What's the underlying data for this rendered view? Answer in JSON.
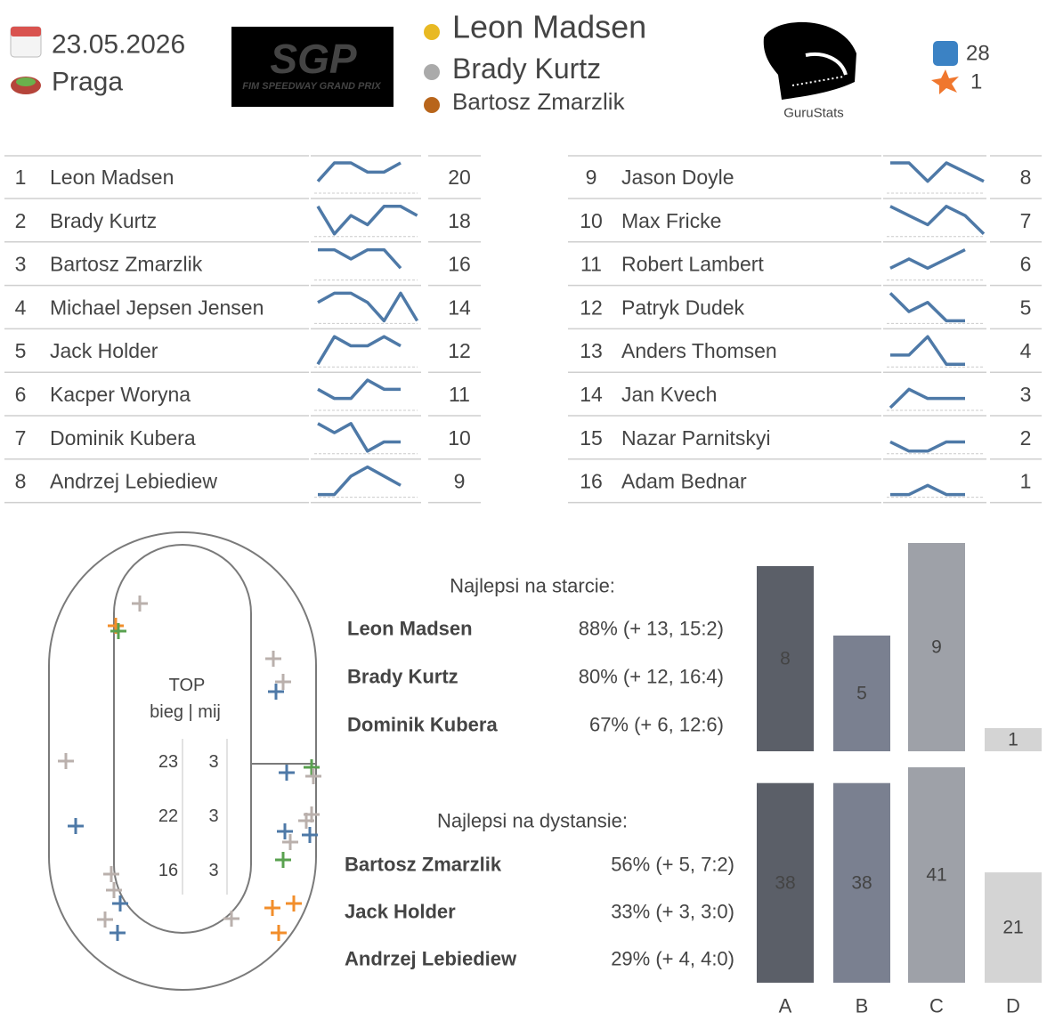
{
  "header": {
    "date": "23.05.2026",
    "place": "Praga",
    "podium": [
      "Leon Madsen",
      "Brady Kurtz",
      "Bartosz Zmarzlik"
    ],
    "logo": {
      "mark": "SGP",
      "caption": "FIM SPEEDWAY GRAND PRIX"
    },
    "brand": "GuruStats",
    "overtakes": 28,
    "crashes": 1
  },
  "standings": {
    "ylim": [
      0,
      3
    ],
    "rows": [
      {
        "rank": 1,
        "name": "Leon Madsen",
        "heats": [
          1,
          3,
          3,
          2,
          2,
          3
        ],
        "points": 20
      },
      {
        "rank": 2,
        "name": "Brady Kurtz",
        "heats": [
          3,
          0,
          2,
          1,
          3,
          3,
          2
        ],
        "points": 18
      },
      {
        "rank": 3,
        "name": "Bartosz Zmarzlik",
        "heats": [
          3,
          3,
          2,
          3,
          3,
          1
        ],
        "points": 16
      },
      {
        "rank": 4,
        "name": "Michael Jepsen Jensen",
        "heats": [
          2,
          3,
          3,
          2,
          0,
          3,
          0
        ],
        "points": 14
      },
      {
        "rank": 5,
        "name": "Jack Holder",
        "heats": [
          0,
          3,
          2,
          2,
          3,
          2
        ],
        "points": 12
      },
      {
        "rank": 6,
        "name": "Kacper Woryna",
        "heats": [
          2,
          1,
          1,
          3,
          2,
          2
        ],
        "points": 11
      },
      {
        "rank": 7,
        "name": "Dominik Kubera",
        "heats": [
          3,
          2,
          3,
          0,
          1,
          1
        ],
        "points": 10
      },
      {
        "rank": 8,
        "name": "Andrzej Lebiediew",
        "heats": [
          0,
          0,
          2,
          3,
          2,
          1
        ],
        "points": 9
      },
      {
        "rank": 9,
        "name": "Jason Doyle",
        "heats": [
          3,
          3,
          1,
          3,
          2,
          1
        ],
        "points": 8
      },
      {
        "rank": 10,
        "name": "Max Fricke",
        "heats": [
          3,
          2,
          1,
          3,
          2,
          0
        ],
        "points": 7
      },
      {
        "rank": 11,
        "name": "Robert Lambert",
        "heats": [
          1,
          2,
          1,
          2,
          3
        ],
        "points": 6
      },
      {
        "rank": 12,
        "name": "Patryk Dudek",
        "heats": [
          3,
          1,
          2,
          0,
          0
        ],
        "points": 5
      },
      {
        "rank": 13,
        "name": "Anders Thomsen",
        "heats": [
          1,
          1,
          3,
          0,
          0
        ],
        "points": 4
      },
      {
        "rank": 14,
        "name": "Jan Kvech",
        "heats": [
          0,
          2,
          1,
          1,
          1
        ],
        "points": 3
      },
      {
        "rank": 15,
        "name": "Nazar Parnitskyi",
        "heats": [
          1,
          0,
          0,
          1,
          1
        ],
        "points": 2
      },
      {
        "rank": 16,
        "name": "Adam Bednar",
        "heats": [
          0,
          0,
          1,
          0,
          0
        ],
        "points": 1
      }
    ]
  },
  "track": {
    "title": "TOP",
    "subtitle": "bieg | mij",
    "rows": [
      {
        "heat": 23,
        "overtakes": 3
      },
      {
        "heat": 22,
        "overtakes": 3
      },
      {
        "heat": 16,
        "overtakes": 3
      }
    ]
  },
  "best_start": {
    "title": "Najlepsi na starcie:",
    "rows": [
      {
        "name": "Leon Madsen",
        "stat": "88% (+ 13, 15:2)"
      },
      {
        "name": "Brady Kurtz",
        "stat": "80% (+ 12, 16:4)"
      },
      {
        "name": "Dominik Kubera",
        "stat": "67% (+ 6, 12:6)"
      }
    ]
  },
  "best_distance": {
    "title": "Najlepsi na dystansie:",
    "rows": [
      {
        "name": "Bartosz Zmarzlik",
        "stat": "56% (+ 5, 7:2)",
        "color": "#4e79a7"
      },
      {
        "name": "Jack Holder",
        "stat": "33% (+ 3, 3:0)",
        "color": "#59a14f"
      },
      {
        "name": "Andrzej Lebiediew",
        "stat": "29% (+ 4, 4:0)",
        "color": "#f28e2b"
      }
    ]
  },
  "chart_data": [
    {
      "type": "bar",
      "values": [
        8,
        5,
        9,
        1
      ],
      "colors": [
        "#5b5f68",
        "#7a8090",
        "#9ea1a8",
        "#d4d4d4"
      ],
      "ylim": [
        0,
        9
      ]
    },
    {
      "type": "bar",
      "categories": [
        "A",
        "B",
        "C",
        "D"
      ],
      "values": [
        38,
        38,
        41,
        21
      ],
      "colors": [
        "#5b5f68",
        "#7a8090",
        "#9ea1a8",
        "#d4d4d4"
      ],
      "ylim": [
        0,
        41
      ]
    }
  ]
}
